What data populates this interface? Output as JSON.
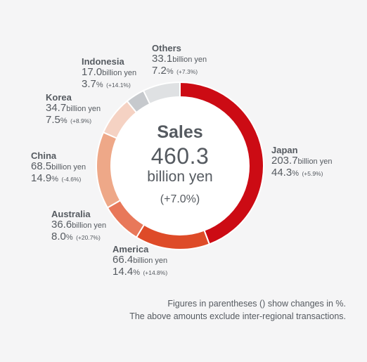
{
  "chart_data": {
    "type": "pie",
    "variant": "donut",
    "title": "Sales",
    "total_value": "460.3",
    "total_unit": "billion yen",
    "total_change": "(+7.0%)",
    "unit_label": "billion yen",
    "segments": [
      {
        "name": "Japan",
        "value": 203.7,
        "percent": 44.3,
        "change": "(+5.9%)",
        "color": "#cc0b14"
      },
      {
        "name": "America",
        "value": 66.4,
        "percent": 14.4,
        "change": "(+14.8%)",
        "color": "#de4b28"
      },
      {
        "name": "Australia",
        "value": 36.6,
        "percent": 8.0,
        "change": "(+20.7%)",
        "color": "#e8785a"
      },
      {
        "name": "China",
        "value": 68.5,
        "percent": 14.9,
        "change": "(-4.6%)",
        "color": "#eea888"
      },
      {
        "name": "Korea",
        "value": 34.7,
        "percent": 7.5,
        "change": "(+8.9%)",
        "color": "#f5d2c3"
      },
      {
        "name": "Indonesia",
        "value": 17.0,
        "percent": 3.7,
        "change": "(+14.1%)",
        "color": "#c6c9cd"
      },
      {
        "name": "Others",
        "value": 33.1,
        "percent": 7.2,
        "change": "(+7.3%)",
        "color": "#dfe1e3"
      }
    ]
  },
  "labels": {
    "japan": {
      "name": "Japan",
      "value": "203.7",
      "unit": "billion yen",
      "percent": "44.3",
      "pct_sign": "%",
      "change": "(+5.9%)"
    },
    "america": {
      "name": "America",
      "value": "66.4",
      "unit": "billion yen",
      "percent": "14.4",
      "pct_sign": "%",
      "change": "(+14.8%)"
    },
    "australia": {
      "name": "Australia",
      "value": "36.6",
      "unit": "billion yen",
      "percent": "8.0",
      "pct_sign": "%",
      "change": "(+20.7%)"
    },
    "china": {
      "name": "China",
      "value": "68.5",
      "unit": "billion yen",
      "percent": "14.9",
      "pct_sign": "%",
      "change": "(-4.6%)"
    },
    "korea": {
      "name": "Korea",
      "value": "34.7",
      "unit": "billion yen",
      "percent": "7.5",
      "pct_sign": "%",
      "change": "(+8.9%)"
    },
    "indonesia": {
      "name": "Indonesia",
      "value": "17.0",
      "unit": "billion yen",
      "percent": "3.7",
      "pct_sign": "%",
      "change": "(+14.1%)"
    },
    "others": {
      "name": "Others",
      "value": "33.1",
      "unit": "billion yen",
      "percent": "7.2",
      "pct_sign": "%",
      "change": "(+7.3%)"
    }
  },
  "footnotes": {
    "line1": "Figures in parentheses () show changes in %.",
    "line2": "The above amounts exclude inter-regional transactions."
  }
}
